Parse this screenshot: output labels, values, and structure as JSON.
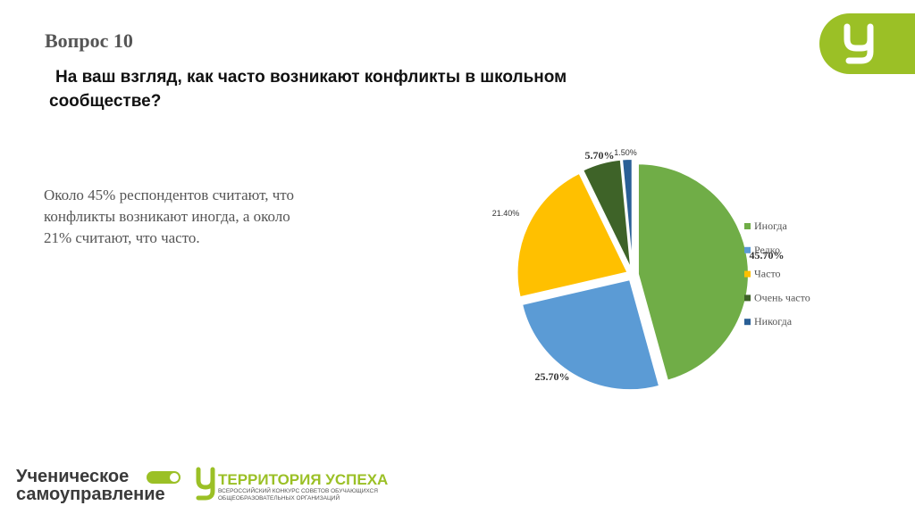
{
  "slide": {
    "heading": "Вопрос 10",
    "question_line1": "На ваш взгляд, как часто возникают конфликты в школьном",
    "question_line2": "сообществе?",
    "summary_lines": [
      "Около 45% респондентов считают, что",
      "конфликты возникают иногда, а около",
      "21% считают, что часто."
    ]
  },
  "footer": {
    "logo1_line1": "Ученическое",
    "logo1_line2": "самоуправление",
    "logo2_title": "ТЕРРИТОРИЯ УСПЕХА",
    "logo2_line1": "ВСЕРОССИЙСКИЙ КОНКУРС СОВЕТОВ ОБУЧАЮЩИХСЯ",
    "logo2_line2": "ОБЩЕОБРАЗОВАТЕЛЬНЫХ ОРГАНИЗАЦИЙ"
  },
  "chart_data": {
    "type": "pie",
    "categories": [
      "Иногда",
      "Редко",
      "Часто",
      "Очень часто",
      "Никогда"
    ],
    "values": [
      45.7,
      25.7,
      21.4,
      5.7,
      1.5
    ],
    "value_labels": [
      "45.70%",
      "25.70%",
      "21.40%",
      "5.70%",
      "1.50%"
    ],
    "colors": [
      "#70ad47",
      "#5b9bd5",
      "#ffc000",
      "#3e6328",
      "#2a5f96"
    ],
    "legend": "right"
  }
}
